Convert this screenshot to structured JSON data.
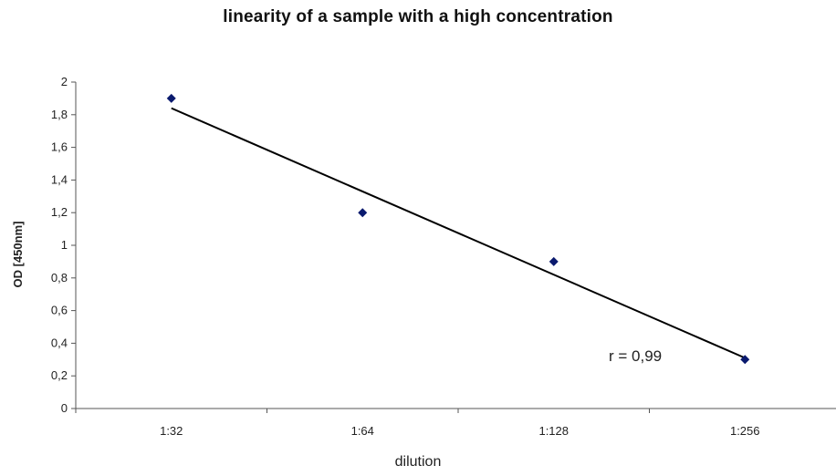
{
  "chart_data": {
    "type": "scatter",
    "title": "linearity of a sample with a high concentration",
    "xlabel": "dilution",
    "ylabel": "OD [450nm]",
    "categories": [
      "1:32",
      "1:64",
      "1:128",
      "1:256"
    ],
    "series": [
      {
        "values": [
          1.9,
          1.2,
          0.9,
          0.3
        ],
        "color": "#0a1a6e",
        "marker": "diamond"
      }
    ],
    "trendline": {
      "type": "linear",
      "color": "#000000"
    },
    "annotation": "r = 0,99",
    "ylim": [
      0,
      2
    ],
    "ystep": 0.2,
    "y_tick_labels": [
      "0",
      "0,2",
      "0,4",
      "0,6",
      "0,8",
      "1",
      "1,2",
      "1,4",
      "1,6",
      "1,8",
      "2"
    ],
    "grid": false,
    "legend": "none"
  }
}
